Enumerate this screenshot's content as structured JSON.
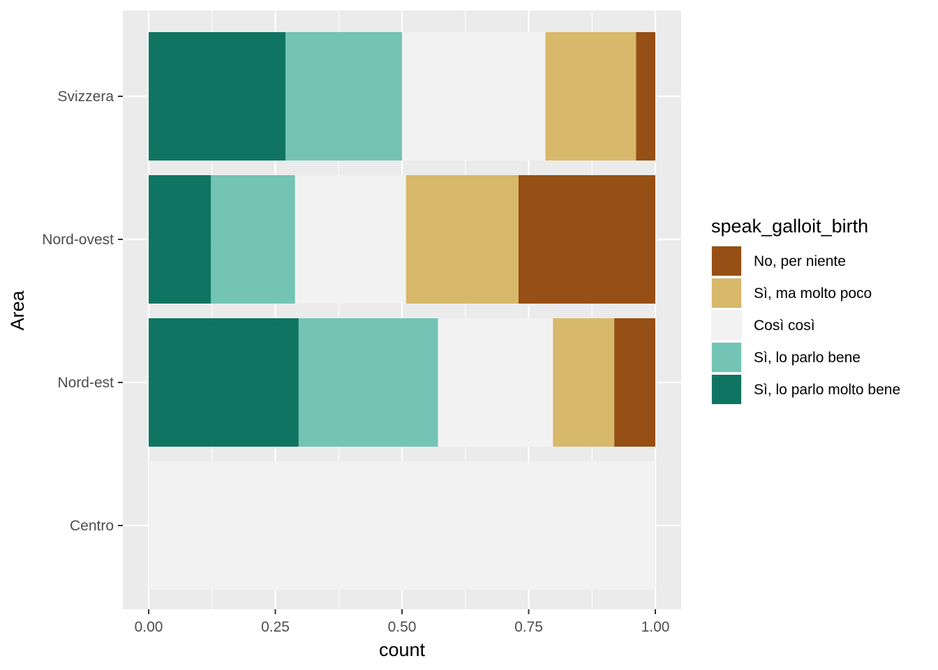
{
  "chart_data": {
    "type": "bar",
    "orientation": "horizontal",
    "stacked": "fill",
    "xlabel": "count",
    "ylabel": "Area",
    "xlim": [
      0,
      1
    ],
    "x_ticks": [
      0,
      0.25,
      0.5,
      0.75,
      1
    ],
    "x_tick_labels": [
      "0.00",
      "0.25",
      "0.50",
      "0.75",
      "1.00"
    ],
    "categories": [
      "Centro",
      "Nord-est",
      "Nord-ovest",
      "Svizzera"
    ],
    "grid": true,
    "legend_position": "right",
    "legend": {
      "title": "speak_galloit_birth",
      "entries": [
        {
          "label": "No, per niente",
          "color": "#964F14"
        },
        {
          "label": "Sì, ma molto poco",
          "color": "#D8B86A"
        },
        {
          "label": "Così così",
          "color": "#F2F2F2"
        },
        {
          "label": "Sì, lo parlo bene",
          "color": "#73C4B4"
        },
        {
          "label": "Sì, lo parlo molto bene",
          "color": "#0F7562"
        }
      ]
    },
    "series": [
      {
        "name": "Sì, lo parlo molto bene",
        "color": "#0F7562",
        "values": [
          0,
          0.296,
          0.123,
          0.27
        ]
      },
      {
        "name": "Sì, lo parlo bene",
        "color": "#73C4B4",
        "values": [
          0,
          0.275,
          0.166,
          0.23
        ]
      },
      {
        "name": "Così così",
        "color": "#F2F2F2",
        "values": [
          1,
          0.227,
          0.219,
          0.283
        ]
      },
      {
        "name": "Sì, ma molto poco",
        "color": "#D8B86A",
        "values": [
          0,
          0.121,
          0.222,
          0.179
        ]
      },
      {
        "name": "No, per niente",
        "color": "#964F14",
        "values": [
          0,
          0.081,
          0.27,
          0.038
        ]
      }
    ]
  },
  "colors": {
    "panel_background": "#EBEBEB",
    "grid_line": "#FFFFFF",
    "tick_text": "#4D4D4D"
  }
}
